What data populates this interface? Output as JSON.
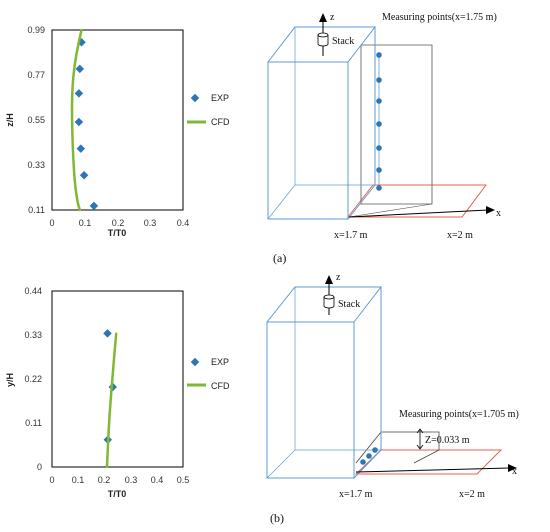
{
  "chart_data": [
    {
      "type": "scatter",
      "xlabel": "T/T0",
      "ylabel": "z/H",
      "xlim": [
        0,
        0.4
      ],
      "ylim": [
        0.11,
        0.99
      ],
      "x_ticks": [
        "0",
        "0.1",
        "0.2",
        "0.3",
        "0.4"
      ],
      "y_ticks": [
        "0.11",
        "0.33",
        "0.55",
        "0.77",
        "0.99"
      ],
      "legend_placement": "right",
      "grid": false,
      "series": [
        {
          "name": "EXP",
          "marker": "diamond",
          "color": "#2e75b6",
          "points": [
            [
              0.09,
              0.93
            ],
            [
              0.085,
              0.8
            ],
            [
              0.082,
              0.68
            ],
            [
              0.082,
              0.54
            ],
            [
              0.088,
              0.41
            ],
            [
              0.098,
              0.28
            ],
            [
              0.128,
              0.13
            ]
          ]
        },
        {
          "name": "CFD",
          "marker": "line",
          "color": "#7fb832",
          "points": [
            [
              0.09,
              0.99
            ],
            [
              0.075,
              0.88
            ],
            [
              0.065,
              0.77
            ],
            [
              0.061,
              0.66
            ],
            [
              0.061,
              0.55
            ],
            [
              0.063,
              0.44
            ],
            [
              0.066,
              0.33
            ],
            [
              0.071,
              0.22
            ],
            [
              0.079,
              0.14
            ],
            [
              0.085,
              0.11
            ]
          ]
        }
      ]
    },
    {
      "type": "scatter",
      "xlabel": "T/T0",
      "ylabel": "y/H",
      "xlim": [
        0,
        0.5
      ],
      "ylim": [
        0,
        0.44
      ],
      "x_ticks": [
        "0",
        "0.1",
        "0.2",
        "0.3",
        "0.4",
        "0.5"
      ],
      "y_ticks": [
        "0",
        "0.11",
        "0.22",
        "0.33",
        "0.44"
      ],
      "legend_placement": "right",
      "grid": false,
      "series": [
        {
          "name": "EXP",
          "marker": "diamond",
          "color": "#2e75b6",
          "points": [
            [
              0.212,
              0.334
            ],
            [
              0.232,
              0.2
            ],
            [
              0.213,
              0.068
            ]
          ]
        },
        {
          "name": "CFD",
          "marker": "line",
          "color": "#7fb832",
          "points": [
            [
              0.245,
              0.333
            ],
            [
              0.234,
              0.25
            ],
            [
              0.224,
              0.17
            ],
            [
              0.216,
              0.09
            ],
            [
              0.21,
              0.0
            ]
          ]
        }
      ]
    }
  ],
  "diagrams": {
    "a": {
      "axis_z": "z",
      "axis_x": "x",
      "stack_label": "Stack",
      "measure_label": "Measuring points(x=1.75 m)",
      "x1_label": "x=1.7 m",
      "x2_label": "x=2 m",
      "caption": "(a)"
    },
    "b": {
      "axis_z": "z",
      "axis_x": "x",
      "stack_label": "Stack",
      "measure_label": "Measuring points(x=1.705 m)",
      "z_label": "Z=0.033 m",
      "x1_label": "x=1.7 m",
      "x2_label": "x=2 m",
      "caption": "(b)"
    }
  },
  "colors": {
    "box": "#5b9bd5",
    "plate": "#e8604c",
    "dots": "#2e75b6",
    "cfd": "#7fb832"
  }
}
